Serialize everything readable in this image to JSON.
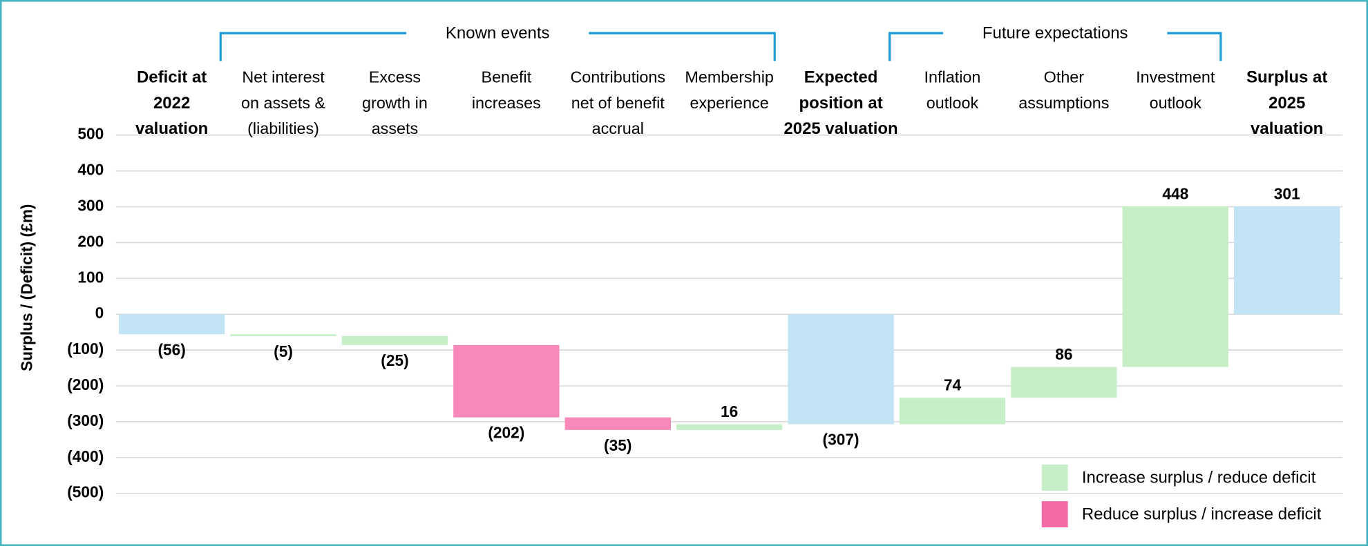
{
  "chart_data": {
    "type": "waterfall",
    "y_label": "Surplus / (Deficit) (£m)",
    "categories": [
      "Deficit at\n2022\nvaluation",
      "Net interest\non assets &\n(liabilities)",
      "Excess\ngrowth in\nassets",
      "Benefit\nincreases",
      "Contributions\nnet of benefit\naccrual",
      "Membership\nexperience",
      "Expected\nposition at\n2025 valuation",
      "Inflation\noutlook",
      "Other\nassumptions",
      "Investment\noutlook",
      "Surplus at\n2025\nvaluation"
    ],
    "bar_kinds": [
      "total",
      "delta",
      "delta",
      "delta",
      "delta",
      "delta",
      "total",
      "delta",
      "delta",
      "delta",
      "total"
    ],
    "values": [
      -56,
      -5,
      -25,
      -202,
      -35,
      16,
      -307,
      74,
      86,
      448,
      301
    ],
    "value_labels": [
      "(56)",
      "(5)",
      "(25)",
      "(202)",
      "(35)",
      "16",
      "(307)",
      "74",
      "86",
      "448",
      "301"
    ],
    "colors": [
      "#c2e4f4",
      "#c6efc8",
      "#c6efc8",
      "#f887ba",
      "#f887ba",
      "#c6efc8",
      "#c2e4f4",
      "#c6efc8",
      "#c6efc8",
      "#c6efc8",
      "#c2e4f4"
    ],
    "ylim": [
      -500,
      500
    ],
    "yticks": [
      {
        "value": -500,
        "label": "(500)"
      },
      {
        "value": -400,
        "label": "(400)"
      },
      {
        "value": -300,
        "label": "(300)"
      },
      {
        "value": -200,
        "label": "(200)"
      },
      {
        "value": -100,
        "label": "(100)"
      },
      0,
      100,
      200,
      300,
      400,
      500
    ],
    "grid": true,
    "groups": [
      {
        "label": "Known events",
        "from": 1,
        "to": 5
      },
      {
        "label": "Future expectations",
        "from": 7,
        "to": 9
      }
    ],
    "group_color": "#1a9bd7",
    "legend": [
      {
        "name": "Increase surplus / reduce deficit",
        "color": "#c6efc8"
      },
      {
        "name": "Reduce surplus / increase deficit",
        "color": "#f36ba6"
      }
    ],
    "legend_position": "lower right"
  }
}
